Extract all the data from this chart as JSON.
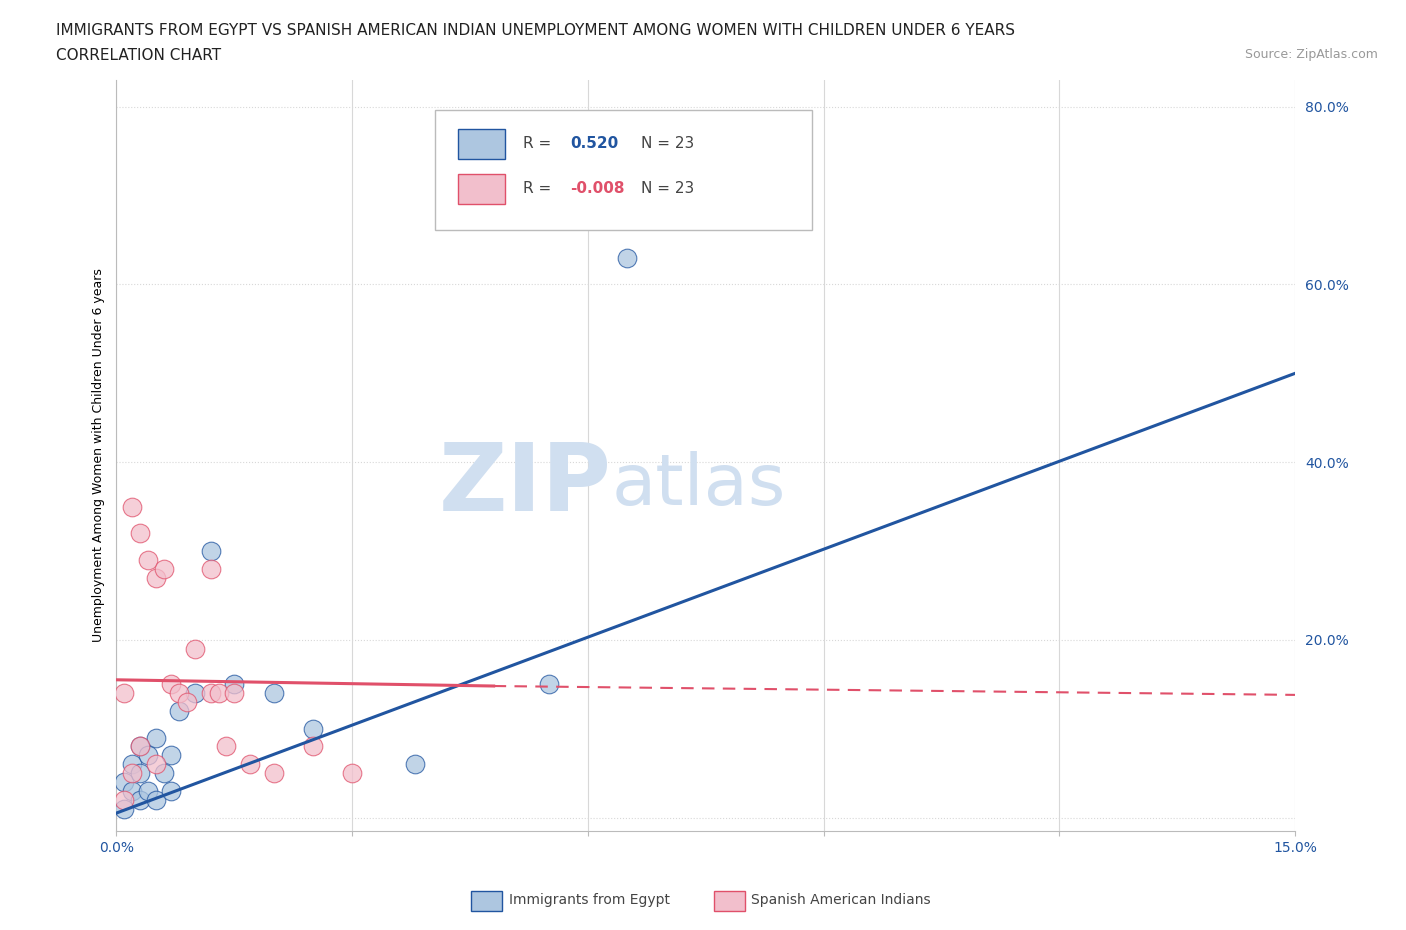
{
  "title_line1": "IMMIGRANTS FROM EGYPT VS SPANISH AMERICAN INDIAN UNEMPLOYMENT AMONG WOMEN WITH CHILDREN UNDER 6 YEARS",
  "title_line2": "CORRELATION CHART",
  "source_text": "Source: ZipAtlas.com",
  "ylabel": "Unemployment Among Women with Children Under 6 years",
  "xlim": [
    0.0,
    0.15
  ],
  "ylim": [
    -0.015,
    0.83
  ],
  "xticks": [
    0.0,
    0.03,
    0.06,
    0.09,
    0.12,
    0.15
  ],
  "xticklabels": [
    "0.0%",
    "",
    "",
    "",
    "",
    "15.0%"
  ],
  "yticks": [
    0.0,
    0.2,
    0.4,
    0.6,
    0.8
  ],
  "yticklabels": [
    "",
    "20.0%",
    "40.0%",
    "60.0%",
    "80.0%"
  ],
  "blue_r": "0.520",
  "blue_n": "23",
  "pink_r": "-0.008",
  "pink_n": "23",
  "blue_color": "#adc6e0",
  "pink_color": "#f2bfcc",
  "blue_line_color": "#2155a0",
  "pink_line_color": "#e0506a",
  "watermark_zip": "ZIP",
  "watermark_atlas": "atlas",
  "watermark_color": "#d0dff0",
  "background_color": "#ffffff",
  "grid_color": "#d8d8d8",
  "blue_scatter_x": [
    0.001,
    0.001,
    0.002,
    0.002,
    0.003,
    0.003,
    0.003,
    0.004,
    0.004,
    0.005,
    0.005,
    0.006,
    0.007,
    0.007,
    0.008,
    0.01,
    0.012,
    0.015,
    0.02,
    0.025,
    0.038,
    0.055,
    0.065
  ],
  "blue_scatter_y": [
    0.01,
    0.04,
    0.03,
    0.06,
    0.02,
    0.05,
    0.08,
    0.03,
    0.07,
    0.02,
    0.09,
    0.05,
    0.03,
    0.07,
    0.12,
    0.14,
    0.3,
    0.15,
    0.14,
    0.1,
    0.06,
    0.15,
    0.63
  ],
  "pink_scatter_x": [
    0.001,
    0.001,
    0.002,
    0.002,
    0.003,
    0.003,
    0.004,
    0.005,
    0.005,
    0.006,
    0.007,
    0.008,
    0.009,
    0.01,
    0.012,
    0.012,
    0.013,
    0.014,
    0.015,
    0.017,
    0.02,
    0.025,
    0.03
  ],
  "pink_scatter_y": [
    0.14,
    0.02,
    0.35,
    0.05,
    0.32,
    0.08,
    0.29,
    0.27,
    0.06,
    0.28,
    0.15,
    0.14,
    0.13,
    0.19,
    0.14,
    0.28,
    0.14,
    0.08,
    0.14,
    0.06,
    0.05,
    0.08,
    0.05
  ],
  "blue_trend_x0": 0.0,
  "blue_trend_y0": 0.005,
  "blue_trend_x1": 0.15,
  "blue_trend_y1": 0.5,
  "pink_trend_solid_x0": 0.0,
  "pink_trend_solid_y0": 0.155,
  "pink_trend_solid_x1": 0.048,
  "pink_trend_solid_y1": 0.148,
  "pink_trend_dash_x0": 0.048,
  "pink_trend_dash_y0": 0.148,
  "pink_trend_dash_x1": 0.15,
  "pink_trend_dash_y1": 0.138,
  "title_fontsize": 11,
  "axis_label_fontsize": 9,
  "tick_fontsize": 10,
  "legend_fontsize": 11
}
